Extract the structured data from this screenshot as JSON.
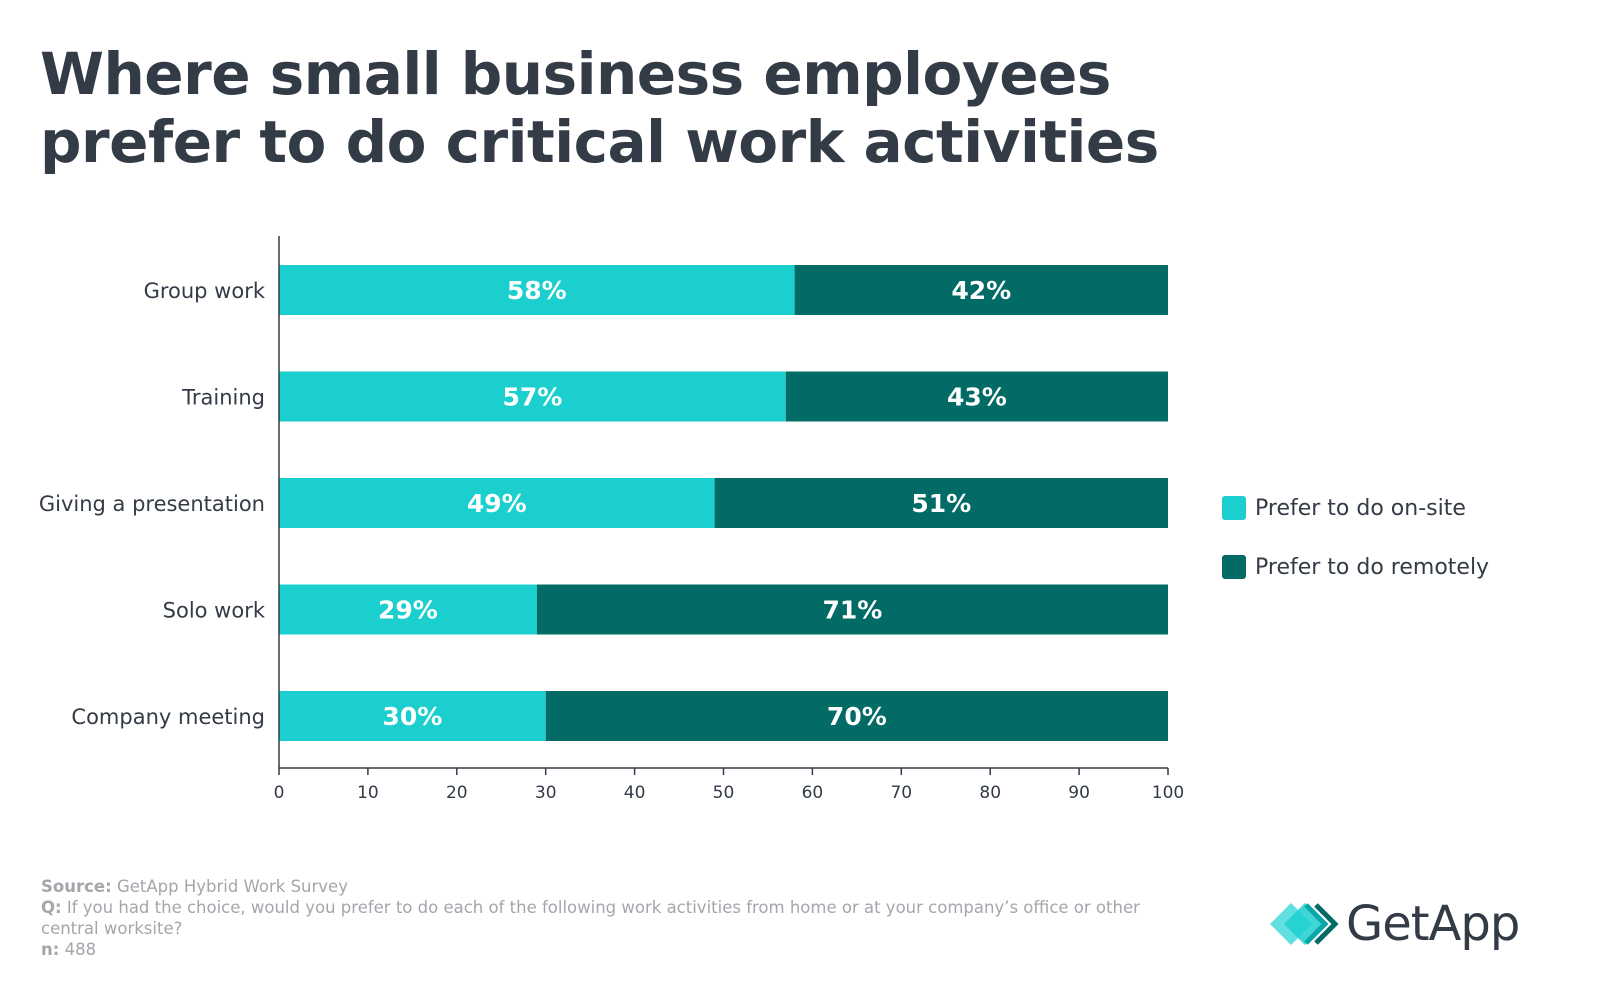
{
  "title_lines": [
    "Where small business employees",
    "prefer to do critical work activities"
  ],
  "colors": {
    "onsite": "#1ccfcf",
    "remote": "#036b65",
    "text": "#333b46",
    "axis": "#333b46"
  },
  "chart_data": {
    "type": "bar",
    "orientation": "horizontal",
    "stacked": true,
    "title": "Where small business employees prefer to do critical work activities",
    "categories": [
      "Group work",
      "Training",
      "Giving a presentation",
      "Solo work",
      "Company meeting"
    ],
    "series": [
      {
        "name": "Prefer to do on-site",
        "values": [
          58,
          57,
          49,
          29,
          30
        ],
        "labels": [
          "58%",
          "57%",
          "49%",
          "29%",
          "30%"
        ]
      },
      {
        "name": "Prefer to do remotely",
        "values": [
          42,
          43,
          51,
          71,
          70
        ],
        "labels": [
          "42%",
          "43%",
          "51%",
          "71%",
          "70%"
        ]
      }
    ],
    "xlim": [
      0,
      100
    ],
    "xticks": [
      "0",
      "10",
      "20",
      "30",
      "40",
      "50",
      "60",
      "70",
      "80",
      "90",
      "100"
    ],
    "xlabel": "",
    "ylabel": "",
    "grid": false,
    "legend_position": "right"
  },
  "legend": [
    {
      "label": "Prefer to do on-site",
      "color": "#1ccfcf"
    },
    {
      "label": "Prefer to do remotely",
      "color": "#036b65"
    }
  ],
  "footer": {
    "source_label": "Source:",
    "source_text": "GetApp Hybrid Work Survey",
    "q_label": "Q:",
    "q_text": "If you had the choice, would you prefer to do each of the following work activities from home or at your company’s office or other central worksite?",
    "n_label": "n:",
    "n_text": "488"
  },
  "logo_text": "GetApp"
}
